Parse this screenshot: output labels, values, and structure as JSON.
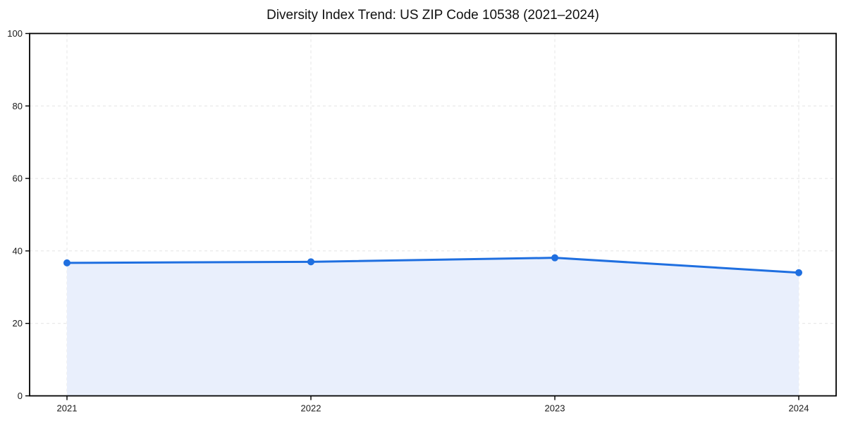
{
  "figure": {
    "background_color": "#ffffff"
  },
  "chart_data": {
    "type": "area",
    "title": "Diversity Index Trend: US ZIP Code 10538 (2021–2024)",
    "x": [
      2021,
      2022,
      2023,
      2024
    ],
    "xtick_labels": [
      "2021",
      "2022",
      "2023",
      "2024"
    ],
    "series": [
      {
        "name": "Diversity Index",
        "values": [
          36.7,
          37.0,
          38.1,
          34.0
        ]
      }
    ],
    "xlabel": "",
    "ylabel": "",
    "ylim": [
      0,
      100
    ],
    "yticks": [
      0,
      20,
      40,
      60,
      80,
      100
    ],
    "ytick_labels": [
      "0",
      "20",
      "40",
      "60",
      "80",
      "100"
    ],
    "grid": "dashed",
    "legend_position": "none",
    "line_color": "#1f6fe0",
    "marker_color": "#1f6fe0",
    "fill_color": "#e9effc",
    "axis_color": "#000000",
    "grid_color": "#e4e4e4",
    "tick_label_color": "#1a1a1a",
    "title_color": "#111111"
  }
}
